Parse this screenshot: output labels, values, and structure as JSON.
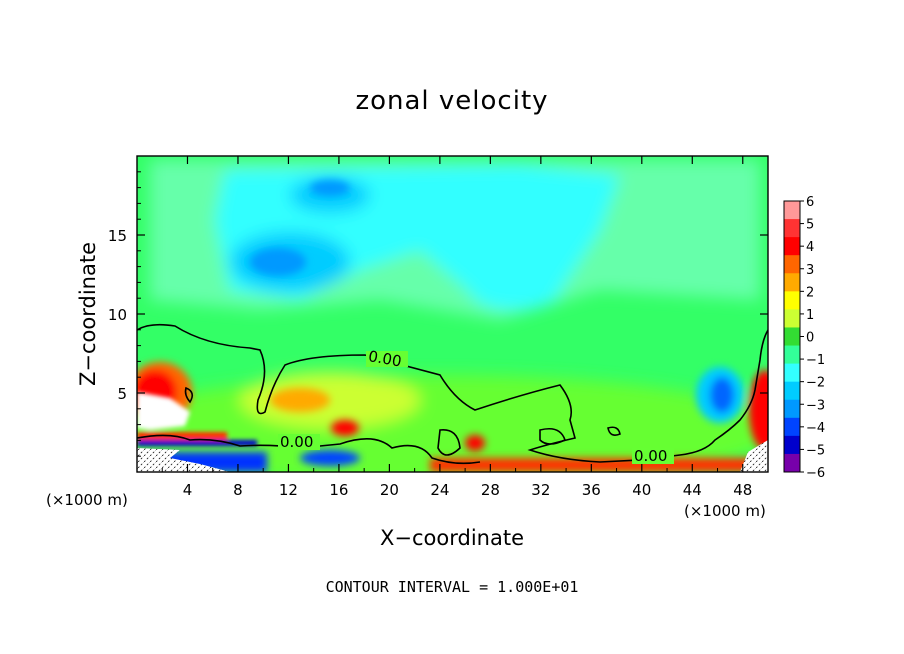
{
  "chart_data": {
    "type": "heatmap",
    "title": "zonal velocity",
    "xlabel": "X−coordinate",
    "ylabel": "Z−coordinate",
    "x_unit_left": "(×1000 m)",
    "x_unit_right": "(×1000 m)",
    "note": "CONTOUR INTERVAL = 1.000E+01",
    "xlim": [
      0,
      50
    ],
    "ylim": [
      0,
      20
    ],
    "x_ticks": [
      "4",
      "8",
      "12",
      "16",
      "20",
      "24",
      "28",
      "32",
      "36",
      "40",
      "44",
      "48"
    ],
    "y_ticks": [
      "5",
      "10",
      "15"
    ],
    "contour_labels": [
      "0.00",
      "0.00",
      "0.00"
    ],
    "colorbar": {
      "labels": [
        "6",
        "5",
        "4",
        "3",
        "2",
        "1",
        "0",
        "−1",
        "−2",
        "−3",
        "−4",
        "−5",
        "−6"
      ],
      "colors": [
        "#ff9999",
        "#ff3333",
        "#ff0000",
        "#ff6600",
        "#ffaa00",
        "#ffff00",
        "#ccff33",
        "#33dd33",
        "#33ff99",
        "#33ffff",
        "#00ccff",
        "#0099ff",
        "#0044ff",
        "#0000cc",
        "#7700aa"
      ],
      "range": [
        -6,
        6
      ]
    },
    "features": [
      {
        "x": 13,
        "z": 13.5,
        "value": -3.0
      },
      {
        "x": 17,
        "z": 18.0,
        "value": -2.5
      },
      {
        "x": 31,
        "z": 11.8,
        "value": -1.8
      },
      {
        "x": 46.5,
        "z": 5.0,
        "value": -3.0
      },
      {
        "x": 2,
        "z": 4.5,
        "value": 4.5
      },
      {
        "x": 13,
        "z": 4.2,
        "value": 3.0
      },
      {
        "x": 17,
        "z": 2.8,
        "value": 3.5
      },
      {
        "x": 26,
        "z": 2.0,
        "value": 3.5
      },
      {
        "x": 49.5,
        "z": 4.0,
        "value": 4.0
      }
    ]
  }
}
